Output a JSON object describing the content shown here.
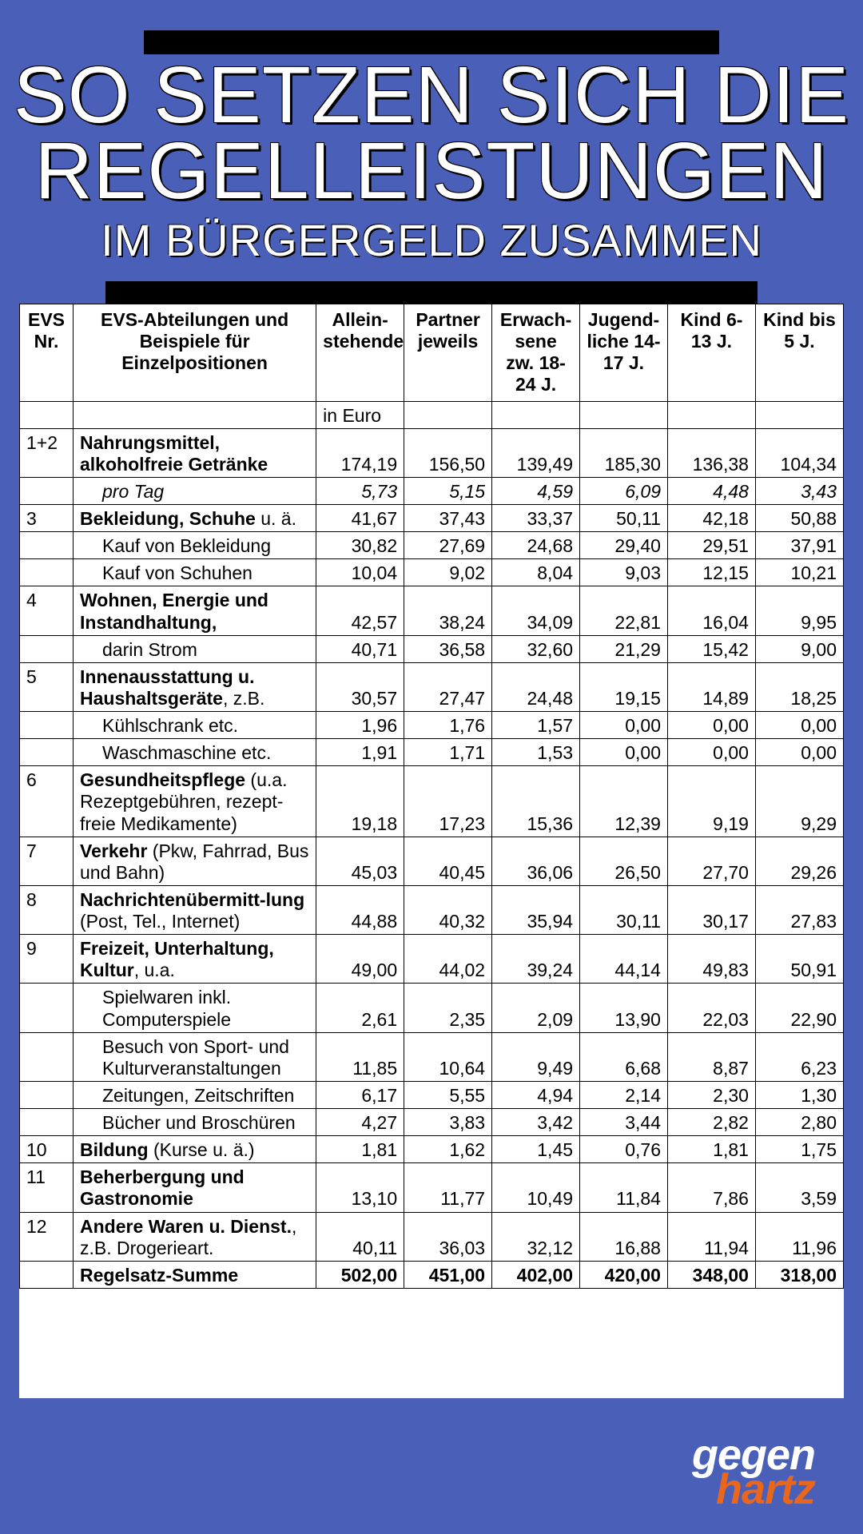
{
  "colors": {
    "page_bg": "#4a5fb8",
    "bar_bg": "#000000",
    "table_bg": "#ffffff",
    "text": "#000000",
    "headline": "#ffffff",
    "logo_white": "#ffffff",
    "logo_orange": "#e8671c"
  },
  "headline": {
    "line1": "SO SETZEN SICH DIE",
    "line2": "REGELLEISTUNGEN",
    "line3": "IM BÜRGERGELD ZUSAMMEN"
  },
  "table": {
    "headers": {
      "nr": "EVS Nr.",
      "desc": "EVS-Abteilungen und Beispiele für Einzelpositionen",
      "c1": "Allein-stehende",
      "c2": "Partner jeweils",
      "c3": "Erwach-sene zw. 18-24 J.",
      "c4": "Jugend-liche 14-17 J.",
      "c5": "Kind 6-13 J.",
      "c6": "Kind bis 5 J."
    },
    "euro_label": "in Euro",
    "rows": [
      {
        "nr": "1+2",
        "desc_html": "<span class='bold'>Nahrungsmittel, alkoholfreie Getränke</span>",
        "vals": [
          "174,19",
          "156,50",
          "139,49",
          "185,30",
          "136,38",
          "104,34"
        ],
        "val_bold": false
      },
      {
        "nr": "",
        "desc_html": "<span class='italic indent' style='display:inline-block'>pro Tag</span>",
        "vals": [
          "5,73",
          "5,15",
          "4,59",
          "6,09",
          "4,48",
          "3,43"
        ],
        "italic_vals": true
      },
      {
        "nr": "3",
        "desc_html": "<span class='bold'>Bekleidung, Schuhe</span> u. ä.",
        "vals": [
          "41,67",
          "37,43",
          "33,37",
          "50,11",
          "42,18",
          "50,88"
        ]
      },
      {
        "nr": "",
        "desc_html": "<span class='indent' style='display:inline-block'>Kauf von Bekleidung</span>",
        "vals": [
          "30,82",
          "27,69",
          "24,68",
          "29,40",
          "29,51",
          "37,91"
        ]
      },
      {
        "nr": "",
        "desc_html": "<span class='indent' style='display:inline-block'>Kauf von Schuhen</span>",
        "vals": [
          "10,04",
          "9,02",
          "8,04",
          "9,03",
          "12,15",
          "10,21"
        ]
      },
      {
        "nr": "4",
        "desc_html": "<span class='bold'>Wohnen, Energie und Instandhaltung,</span>",
        "vals": [
          "42,57",
          "38,24",
          "34,09",
          "22,81",
          "16,04",
          "9,95"
        ]
      },
      {
        "nr": "",
        "desc_html": "<span class='indent' style='display:inline-block'>darin Strom</span>",
        "vals": [
          "40,71",
          "36,58",
          "32,60",
          "21,29",
          "15,42",
          "9,00"
        ]
      },
      {
        "nr": "5",
        "desc_html": "<span class='bold'>Innenausstattung u. Haushaltsgeräte</span>, z.B.",
        "vals": [
          "30,57",
          "27,47",
          "24,48",
          "19,15",
          "14,89",
          "18,25"
        ]
      },
      {
        "nr": "",
        "desc_html": "<span class='indent' style='display:inline-block'>Kühlschrank etc.</span>",
        "vals": [
          "1,96",
          "1,76",
          "1,57",
          "0,00",
          "0,00",
          "0,00"
        ]
      },
      {
        "nr": "",
        "desc_html": "<span class='indent' style='display:inline-block'>Waschmaschine etc.</span>",
        "vals": [
          "1,91",
          "1,71",
          "1,53",
          "0,00",
          "0,00",
          "0,00"
        ]
      },
      {
        "nr": "6",
        "desc_html": "<span class='bold'>Gesundheitspflege</span> (u.a. Rezeptgebühren, rezept-freie Medikamente)",
        "vals": [
          "19,18",
          "17,23",
          "15,36",
          "12,39",
          "9,19",
          "9,29"
        ]
      },
      {
        "nr": "7",
        "desc_html": "<span class='bold'>Verkehr</span> (Pkw, Fahrrad, Bus und Bahn)",
        "vals": [
          "45,03",
          "40,45",
          "36,06",
          "26,50",
          "27,70",
          "29,26"
        ]
      },
      {
        "nr": "8",
        "desc_html": "<span class='bold'>Nachrichtenübermitt-lung</span> (Post, Tel., Internet)",
        "vals": [
          "44,88",
          "40,32",
          "35,94",
          "30,11",
          "30,17",
          "27,83"
        ]
      },
      {
        "nr": "9",
        "desc_html": "<span class='bold'>Freizeit, Unterhaltung, Kultur</span>, u.a.",
        "vals": [
          "49,00",
          "44,02",
          "39,24",
          "44,14",
          "49,83",
          "50,91"
        ]
      },
      {
        "nr": "",
        "desc_html": "<span class='indent' style='display:inline-block'>Spielwaren inkl. Computerspiele</span>",
        "vals": [
          "2,61",
          "2,35",
          "2,09",
          "13,90",
          "22,03",
          "22,90"
        ]
      },
      {
        "nr": "",
        "desc_html": "<span class='indent' style='display:inline-block'>Besuch von Sport- und Kulturveranstaltungen</span>",
        "vals": [
          "11,85",
          "10,64",
          "9,49",
          "6,68",
          "8,87",
          "6,23"
        ]
      },
      {
        "nr": "",
        "desc_html": "<span class='indent' style='display:inline-block'>Zeitungen, Zeitschriften</span>",
        "vals": [
          "6,17",
          "5,55",
          "4,94",
          "2,14",
          "2,30",
          "1,30"
        ]
      },
      {
        "nr": "",
        "desc_html": "<span class='indent' style='display:inline-block'>Bücher und Broschüren</span>",
        "vals": [
          "4,27",
          "3,83",
          "3,42",
          "3,44",
          "2,82",
          "2,80"
        ]
      },
      {
        "nr": "10",
        "desc_html": "<span class='bold'>Bildung</span> (Kurse u. ä.)",
        "vals": [
          "1,81",
          "1,62",
          "1,45",
          "0,76",
          "1,81",
          "1,75"
        ]
      },
      {
        "nr": "11",
        "desc_html": "<span class='bold'>Beherbergung und Gastronomie</span>",
        "vals": [
          "13,10",
          "11,77",
          "10,49",
          "11,84",
          "7,86",
          "3,59"
        ]
      },
      {
        "nr": "12",
        "desc_html": "<span class='bold'>Andere Waren u. Dienst.</span>, z.B. Drogerieart.",
        "vals": [
          "40,11",
          "36,03",
          "32,12",
          "16,88",
          "11,94",
          "11,96"
        ]
      }
    ],
    "sum": {
      "label": "Regelsatz-Summe",
      "vals": [
        "502,00",
        "451,00",
        "402,00",
        "420,00",
        "348,00",
        "318,00"
      ]
    }
  },
  "logo": {
    "top": "gegen",
    "bottom": "hartz"
  }
}
